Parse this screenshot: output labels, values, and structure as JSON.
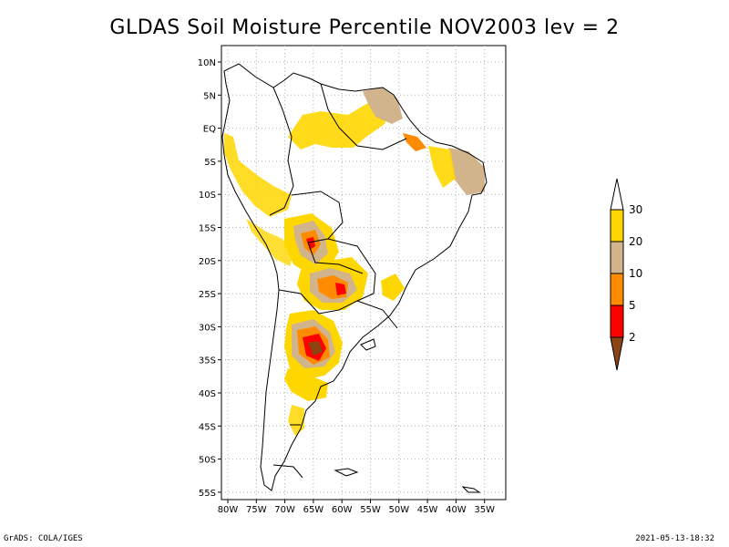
{
  "title": "GLDAS Soil Moisture Percentile NOV2003 lev = 2",
  "map": {
    "lat_ticks": [
      "10N",
      "5N",
      "EQ",
      "5S",
      "10S",
      "15S",
      "20S",
      "25S",
      "30S",
      "35S",
      "40S",
      "45S",
      "50S",
      "55S"
    ],
    "lon_ticks": [
      "80W",
      "75W",
      "70W",
      "65W",
      "60W",
      "55W",
      "50W",
      "45W",
      "40W",
      "35W"
    ],
    "grid": "dotted"
  },
  "legend": {
    "labels": [
      "30",
      "20",
      "10",
      "5",
      "2"
    ],
    "colors": {
      "above_30": "#ffffff",
      "p20_30": "#ffd700",
      "p10_20": "#d2b48c",
      "p5_10": "#ff8c00",
      "p2_5": "#ff0000",
      "below_2": "#8b4513"
    }
  },
  "footer": {
    "left": "GrADS: COLA/IGES",
    "right": "2021-05-13-18:32"
  }
}
